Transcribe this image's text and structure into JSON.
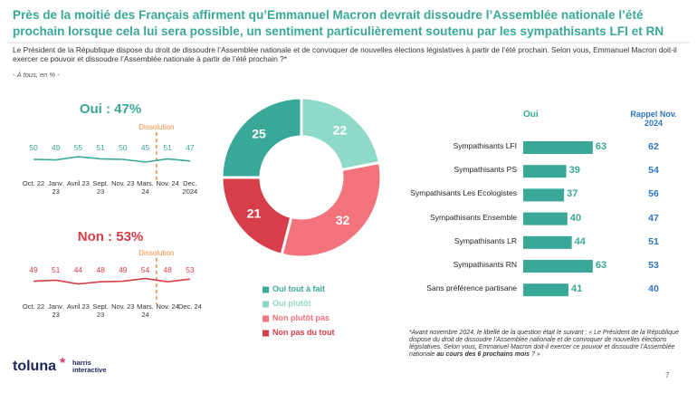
{
  "header": {
    "title": "Près de la moitié des Français affirment qu’Emmanuel Macron devrait dissoudre l’Assemblée nationale l’été prochain lorsque cela lui sera possible, un sentiment particulièrement soutenu par les sympathisants LFI et RN",
    "question": "Le Président de la République dispose du droit de dissoudre l’Assemblée nationale et de convoquer de nouvelles élections législatives à partir de l’été prochain. Selon vous, Emmanuel Macron doit-il exercer ce pouvoir et dissoudre l’Assemblée nationale à partir de l’été prochain ?*",
    "base": "- À tous, en % -"
  },
  "chart_data": [
    {
      "type": "line",
      "title": "Oui : 47%",
      "annotation": "Dissolution",
      "categories": [
        "Oct. 22",
        "Janv. 23",
        "Avril 23",
        "Sept. 23",
        "Nov. 23",
        "Mars. 24",
        "Nov. 24",
        "Dec. 2024"
      ],
      "values": [
        50,
        49,
        55,
        51,
        50,
        45,
        51,
        47
      ],
      "color": "#3aa898",
      "annotation_color": "#f08a3c",
      "ylim": [
        0,
        100
      ]
    },
    {
      "type": "line",
      "title": "Non : 53%",
      "annotation": "Dissolution",
      "categories": [
        "Oct. 22",
        "Janv. 23",
        "Avril 23",
        "Sept. 23",
        "Nov. 23",
        "Mars. 24",
        "Nov. 24",
        "Dec. 24"
      ],
      "values": [
        49,
        51,
        44,
        48,
        49,
        54,
        48,
        53
      ],
      "color": "#d63e4a",
      "annotation_color": "#f08a3c",
      "ylim": [
        0,
        100
      ]
    },
    {
      "type": "donut",
      "categories": [
        "Oui tout à fait",
        "Oui plutôt",
        "Non plutôt pas",
        "Non pas du tout"
      ],
      "values": [
        25,
        22,
        32,
        21
      ],
      "colors": [
        "#3aa898",
        "#8fd9c9",
        "#f2737c",
        "#d63e4a"
      ]
    },
    {
      "type": "bar",
      "orientation": "horizontal",
      "categories": [
        "Sympathisants LFI",
        "Sympathisants PS",
        "Sympathisants Les Ecologistes",
        "Sympathisants Ensemble",
        "Sympathisants LR",
        "Sympathisants RN",
        "Sans préférence partisane"
      ],
      "series": [
        {
          "name": "Oui",
          "color": "#3aa898",
          "values": [
            63,
            39,
            37,
            40,
            44,
            63,
            41
          ]
        },
        {
          "name": "Rappel Nov. 2024",
          "color": "#2f74c0",
          "values": [
            62,
            54,
            56,
            47,
            51,
            53,
            40
          ]
        }
      ],
      "xlim": [
        0,
        100
      ]
    }
  ],
  "footnote": {
    "text": "*Avant novembre 2024, le libellé de la question était le suivant : « Le Président de la République dispose du droit de dissoudre l’Assemblée nationale et de convoquer de nouvelles élections législatives. Selon vous, Emmanuel Macron doit-il exercer ce pouvoir et dissoudre l’Assemblée nationale ",
    "emphasis": "au cours des 6 prochains mois",
    "end": " ? »"
  },
  "logo": {
    "brand": "toluna",
    "star": "*",
    "partner": "harris interactive"
  },
  "page_number": 7
}
